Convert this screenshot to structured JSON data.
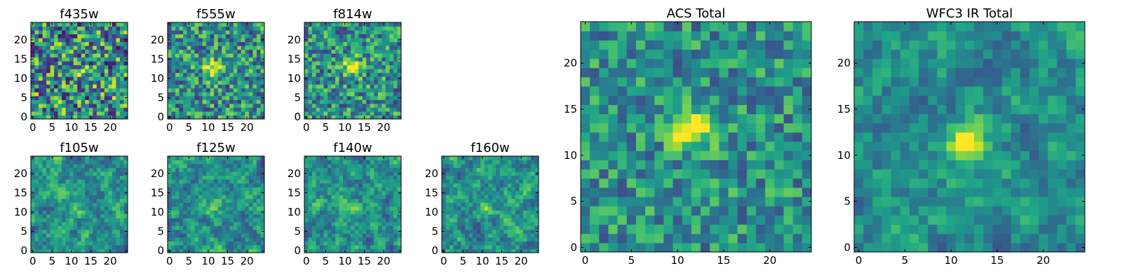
{
  "chart_data": [
    {
      "type": "heatmap",
      "title": "f435w",
      "extent": [
        0,
        24
      ],
      "xticks": [
        0,
        5,
        10,
        15,
        20
      ],
      "yticks": [
        0,
        5,
        10,
        15,
        20
      ],
      "colormap": "viridis",
      "source_x": 12.5,
      "source_y": 12.5,
      "source_strength": 0.12,
      "noise_level": 0.55,
      "smoothness": 0.0,
      "seed": 11
    },
    {
      "type": "heatmap",
      "title": "f555w",
      "extent": [
        0,
        24
      ],
      "xticks": [
        0,
        5,
        10,
        15,
        20
      ],
      "yticks": [
        0,
        5,
        10,
        15,
        20
      ],
      "colormap": "viridis",
      "source_x": 11.5,
      "source_y": 12.5,
      "source_strength": 0.55,
      "noise_level": 0.42,
      "smoothness": 0.0,
      "seed": 23
    },
    {
      "type": "heatmap",
      "title": "f814w",
      "extent": [
        0,
        24
      ],
      "xticks": [
        0,
        5,
        10,
        15,
        20
      ],
      "yticks": [
        0,
        5,
        10,
        15,
        20
      ],
      "colormap": "viridis",
      "source_x": 12.0,
      "source_y": 13.0,
      "source_strength": 0.5,
      "noise_level": 0.4,
      "smoothness": 0.0,
      "seed": 37
    },
    {
      "type": "heatmap",
      "title": "f105w",
      "extent": [
        0,
        24
      ],
      "xticks": [
        0,
        5,
        10,
        15,
        20
      ],
      "yticks": [
        0,
        5,
        10,
        15,
        20
      ],
      "colormap": "viridis",
      "source_x": 11.0,
      "source_y": 11.0,
      "source_strength": 0.2,
      "noise_level": 0.5,
      "smoothness": 0.6,
      "seed": 41
    },
    {
      "type": "heatmap",
      "title": "f125w",
      "extent": [
        0,
        24
      ],
      "xticks": [
        0,
        5,
        10,
        15,
        20
      ],
      "yticks": [
        0,
        5,
        10,
        15,
        20
      ],
      "colormap": "viridis",
      "source_x": 12.0,
      "source_y": 11.0,
      "source_strength": 0.15,
      "noise_level": 0.5,
      "smoothness": 0.6,
      "seed": 53
    },
    {
      "type": "heatmap",
      "title": "f140w",
      "extent": [
        0,
        24
      ],
      "xticks": [
        0,
        5,
        10,
        15,
        20
      ],
      "yticks": [
        0,
        5,
        10,
        15,
        20
      ],
      "colormap": "viridis",
      "source_x": 11.0,
      "source_y": 12.0,
      "source_strength": 0.15,
      "noise_level": 0.5,
      "smoothness": 0.6,
      "seed": 67
    },
    {
      "type": "heatmap",
      "title": "f160w",
      "extent": [
        0,
        24
      ],
      "xticks": [
        0,
        5,
        10,
        15,
        20
      ],
      "yticks": [
        0,
        5,
        10,
        15,
        20
      ],
      "colormap": "viridis",
      "source_x": 12.0,
      "source_y": 11.0,
      "source_strength": 0.2,
      "noise_level": 0.5,
      "smoothness": 0.6,
      "seed": 79
    },
    {
      "type": "heatmap",
      "title": "ACS Total",
      "extent": [
        0,
        24
      ],
      "xticks": [
        0,
        5,
        10,
        15,
        20
      ],
      "yticks": [
        0,
        5,
        10,
        15,
        20
      ],
      "colormap": "viridis",
      "source_x": 11.5,
      "source_y": 13.0,
      "source_strength": 0.6,
      "noise_level": 0.32,
      "smoothness": 0.0,
      "seed": 97
    },
    {
      "type": "heatmap",
      "title": "WFC3 IR Total",
      "extent": [
        0,
        24
      ],
      "xticks": [
        0,
        5,
        10,
        15,
        20
      ],
      "yticks": [
        0,
        5,
        10,
        15,
        20
      ],
      "colormap": "viridis",
      "source_x": 11.5,
      "source_y": 11.5,
      "source_strength": 0.4,
      "noise_level": 0.4,
      "smoothness": 0.55,
      "seed": 101
    }
  ]
}
